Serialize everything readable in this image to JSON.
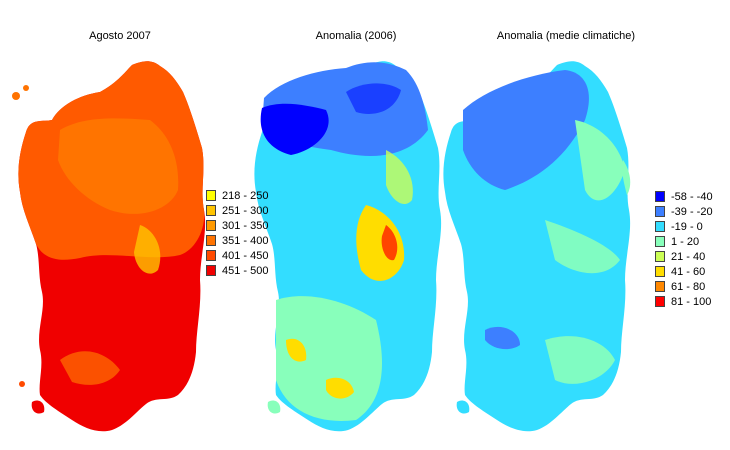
{
  "panels": [
    {
      "title": "Agosto 2007",
      "legend": [
        {
          "label": "218 - 250",
          "color": "#ffff00"
        },
        {
          "label": "251 - 300",
          "color": "#ffc400"
        },
        {
          "label": "301 - 350",
          "color": "#ff9a00"
        },
        {
          "label": "351 - 400",
          "color": "#ff7300"
        },
        {
          "label": "401 - 450",
          "color": "#ff4a00"
        },
        {
          "label": "451 - 500",
          "color": "#f00000"
        }
      ]
    },
    {
      "title": "Anomalia (2006)"
    },
    {
      "title": "Anomalia (medie climatiche)",
      "legend": [
        {
          "label": "-58 - -40",
          "color": "#0000ff"
        },
        {
          "label": "-39 - -20",
          "color": "#3d7fff"
        },
        {
          "label": "-19 - 0",
          "color": "#33ddff"
        },
        {
          "label": "1 - 20",
          "color": "#88ffbb"
        },
        {
          "label": "21 - 40",
          "color": "#ccff55"
        },
        {
          "label": "41 - 60",
          "color": "#ffdd00"
        },
        {
          "label": "61 - 80",
          "color": "#ff8800"
        },
        {
          "label": "81 - 100",
          "color": "#ff0000"
        }
      ]
    }
  ]
}
